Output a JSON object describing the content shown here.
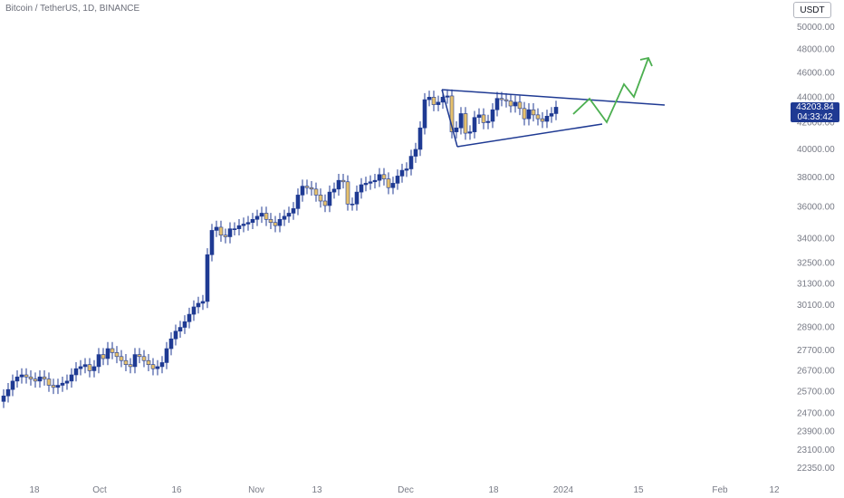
{
  "header": {
    "title": "Bitcoin / TetherUS, 1D, BINANCE",
    "currency_label": "USDT"
  },
  "last_price": {
    "value": "43203.84",
    "countdown": "04:33:42"
  },
  "colors": {
    "up": "#1f3a93",
    "down": "#e6c16c",
    "wick": "#1f3a93",
    "triangle": "#1f3a93",
    "projection": "#4caf50"
  },
  "chart_data": {
    "type": "candlestick",
    "y_axis": {
      "scale": "log",
      "ticks": [
        "50000.00",
        "48000.00",
        "46000.00",
        "44000.00",
        "42000.00",
        "40000.00",
        "38000.00",
        "36000.00",
        "34000.00",
        "32500.00",
        "31300.00",
        "30100.00",
        "28900.00",
        "27700.00",
        "26700.00",
        "25700.00",
        "24700.00",
        "23900.00",
        "23100.00",
        "22350.00"
      ]
    },
    "x_axis": {
      "ticks": [
        "18",
        "Oct",
        "16",
        "Nov",
        "13",
        "Dec",
        "18",
        "2024",
        "15",
        "Feb",
        "12"
      ]
    },
    "ohlc_close_approx": [
      25500,
      25800,
      26200,
      26400,
      26500,
      26400,
      26300,
      26200,
      26400,
      26300,
      26000,
      25900,
      26000,
      26100,
      26200,
      26500,
      26800,
      26900,
      27000,
      26700,
      26900,
      27500,
      27300,
      27800,
      27600,
      27400,
      27200,
      27000,
      26900,
      27500,
      27400,
      27200,
      27000,
      26800,
      26900,
      27100,
      27800,
      28300,
      28700,
      28900,
      29200,
      29600,
      30000,
      30200,
      30300,
      33000,
      34500,
      34700,
      34200,
      34100,
      34600,
      34600,
      34800,
      34900,
      35000,
      35200,
      35400,
      35600,
      35200,
      35000,
      34800,
      35200,
      35400,
      35600,
      35900,
      36800,
      37400,
      37300,
      37200,
      36800,
      36400,
      36100,
      37000,
      37200,
      37800,
      37700,
      36200,
      36200,
      37000,
      37500,
      37600,
      37700,
      37800,
      38200,
      37900,
      37300,
      37600,
      38100,
      38500,
      38600,
      39500,
      40000,
      41600,
      43800,
      44000,
      43400,
      43600,
      44000,
      44100,
      41300,
      41600,
      42700,
      41200,
      41300,
      42400,
      42600,
      42000,
      42100,
      43000,
      43900,
      43800,
      43700,
      43300,
      43600,
      43100,
      42300,
      43000,
      42600,
      42300,
      42100,
      42500,
      42700,
      43200
    ],
    "annotations": {
      "triangle": {
        "upper_line": "descending",
        "lower_line": "ascending"
      },
      "projection": "up"
    }
  }
}
